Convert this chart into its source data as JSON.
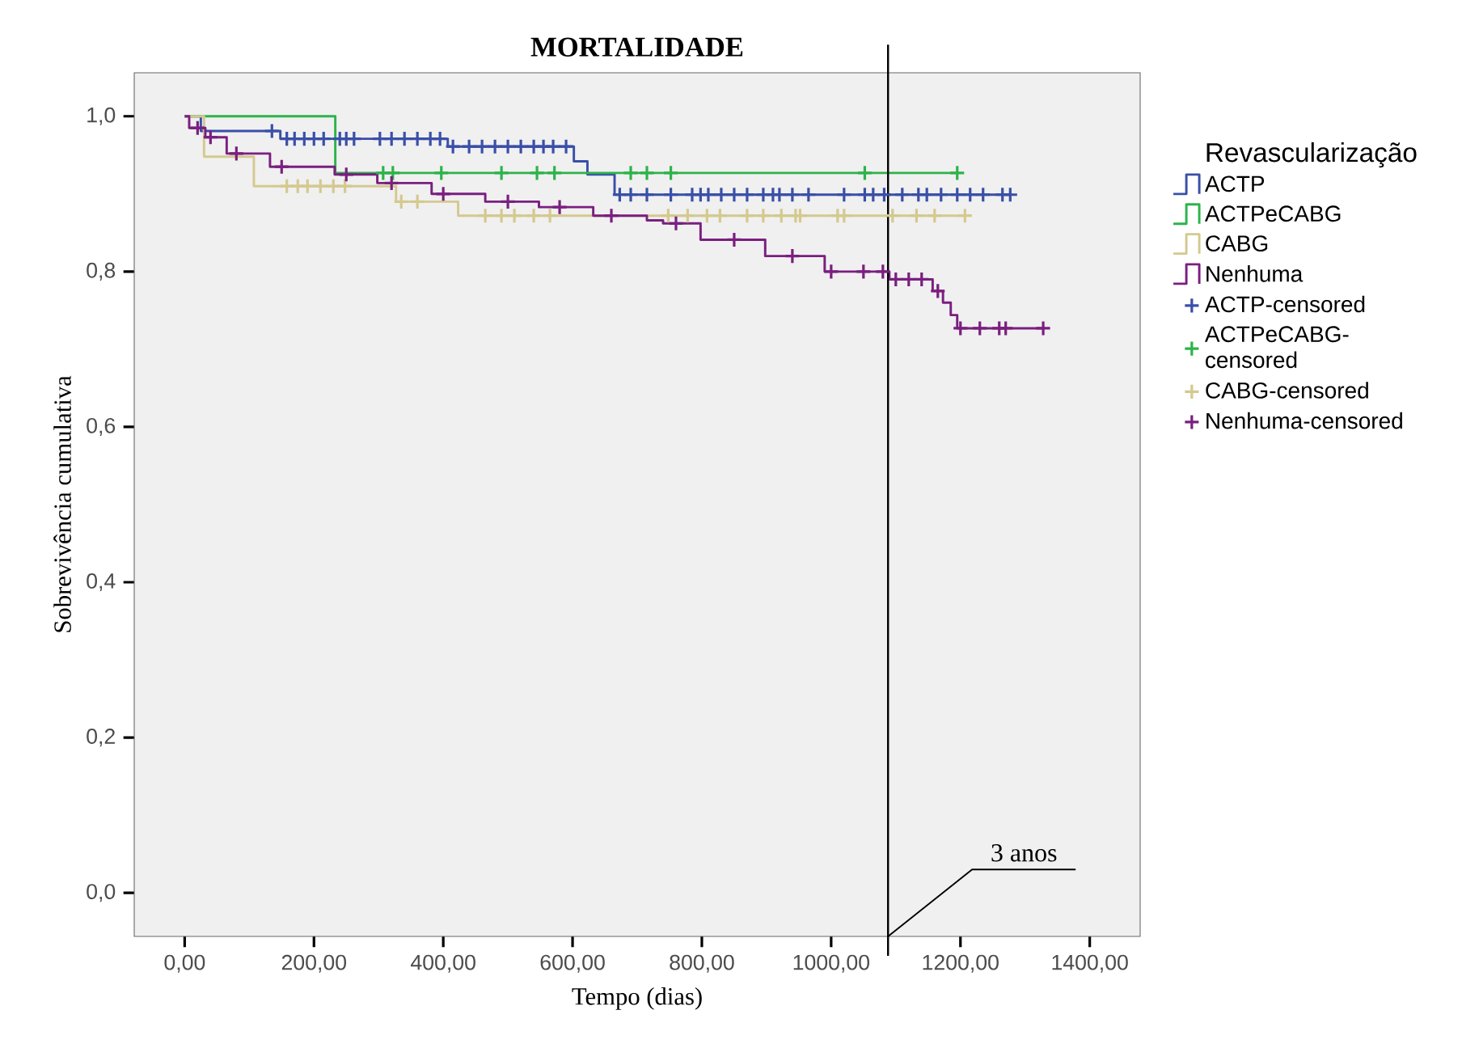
{
  "chart_data": {
    "type": "step",
    "title": "MORTALIDADE",
    "xlabel": "Tempo (dias)",
    "ylabel": "Sobrevivência cumulativa",
    "legend_title": "Revascularização",
    "legend": "right",
    "xlim": [
      -78,
      1478
    ],
    "ylim": [
      -0.056,
      1.056
    ],
    "xticks": [
      {
        "value": 0,
        "label": "0,00"
      },
      {
        "value": 200,
        "label": "200,00"
      },
      {
        "value": 400,
        "label": "400,00"
      },
      {
        "value": 600,
        "label": "600,00"
      },
      {
        "value": 800,
        "label": "800,00"
      },
      {
        "value": 1000,
        "label": "1000,00"
      },
      {
        "value": 1200,
        "label": "1200,00"
      },
      {
        "value": 1400,
        "label": "1400,00"
      }
    ],
    "yticks": [
      {
        "value": 0,
        "label": "0,0"
      },
      {
        "value": 0.2,
        "label": "0,2"
      },
      {
        "value": 0.4,
        "label": "0,4"
      },
      {
        "value": 0.6,
        "label": "0,6"
      },
      {
        "value": 0.8,
        "label": "0,8"
      },
      {
        "value": 1,
        "label": "1,0"
      }
    ],
    "ref_lines": [
      {
        "axis": "x",
        "value": 1088,
        "label": "3 anos",
        "color": "#000000"
      }
    ],
    "series": [
      {
        "name": "ACTP",
        "type": "step",
        "color": "#3a4fa8",
        "x": [
          0,
          25,
          148,
          407,
          602,
          623,
          665,
          1277
        ],
        "values": [
          1.0,
          0.981,
          0.971,
          0.961,
          0.942,
          0.925,
          0.899,
          0.899
        ]
      },
      {
        "name": "ACTPeCABG",
        "type": "step",
        "color": "#2db34a",
        "x": [
          0,
          233,
          1195
        ],
        "values": [
          1.0,
          0.927,
          0.927
        ]
      },
      {
        "name": "CABG",
        "type": "step",
        "color": "#d4c98f",
        "x": [
          0,
          30,
          107,
          327,
          423,
          1207
        ],
        "values": [
          1.0,
          0.948,
          0.91,
          0.89,
          0.872,
          0.872
        ]
      },
      {
        "name": "Nenhuma",
        "type": "step",
        "color": "#7a1f7f",
        "x": [
          0,
          7,
          32,
          65,
          132,
          232,
          298,
          382,
          465,
          548,
          632,
          715,
          740,
          798,
          898,
          990,
          1090,
          1157,
          1173,
          1185,
          1195,
          1328
        ],
        "values": [
          1.0,
          0.985,
          0.973,
          0.952,
          0.935,
          0.925,
          0.914,
          0.9,
          0.89,
          0.883,
          0.872,
          0.866,
          0.862,
          0.841,
          0.82,
          0.8,
          0.79,
          0.775,
          0.76,
          0.744,
          0.727,
          0.727
        ]
      },
      {
        "name": "ACTP-censored",
        "type": "scatter",
        "marker": "cross",
        "color": "#3a4fa8",
        "x": [
          135,
          158,
          170,
          185,
          200,
          215,
          240,
          250,
          262,
          302,
          320,
          340,
          360,
          380,
          395,
          415,
          440,
          460,
          480,
          500,
          520,
          540,
          555,
          570,
          590,
          673,
          690,
          715,
          752,
          785,
          798,
          810,
          830,
          850,
          870,
          895,
          910,
          920,
          940,
          965,
          1020,
          1052,
          1065,
          1082,
          1110,
          1135,
          1148,
          1170,
          1195,
          1215,
          1235,
          1265,
          1277
        ],
        "values": [
          0.981,
          0.971,
          0.971,
          0.971,
          0.971,
          0.971,
          0.971,
          0.971,
          0.971,
          0.971,
          0.971,
          0.971,
          0.971,
          0.971,
          0.971,
          0.961,
          0.961,
          0.961,
          0.961,
          0.961,
          0.961,
          0.961,
          0.961,
          0.961,
          0.961,
          0.899,
          0.899,
          0.899,
          0.899,
          0.899,
          0.899,
          0.899,
          0.899,
          0.899,
          0.899,
          0.899,
          0.899,
          0.899,
          0.899,
          0.899,
          0.899,
          0.899,
          0.899,
          0.899,
          0.899,
          0.899,
          0.899,
          0.899,
          0.899,
          0.899,
          0.899,
          0.899,
          0.899
        ]
      },
      {
        "name": "ACTPeCABG-censored",
        "type": "scatter",
        "marker": "cross",
        "color": "#2db34a",
        "x": [
          307,
          322,
          397,
          490,
          545,
          572,
          690,
          715,
          752,
          1052,
          1195
        ],
        "values": [
          0.927,
          0.927,
          0.927,
          0.927,
          0.927,
          0.927,
          0.927,
          0.927,
          0.927,
          0.927,
          0.927
        ]
      },
      {
        "name": "CABG-censored",
        "type": "scatter",
        "marker": "cross",
        "color": "#d4c98f",
        "x": [
          158,
          175,
          190,
          210,
          230,
          248,
          335,
          360,
          465,
          490,
          510,
          540,
          565,
          748,
          778,
          808,
          828,
          870,
          895,
          923,
          945,
          952,
          1010,
          1020,
          1095,
          1132,
          1160,
          1207
        ],
        "values": [
          0.91,
          0.91,
          0.91,
          0.91,
          0.91,
          0.91,
          0.89,
          0.89,
          0.872,
          0.872,
          0.872,
          0.872,
          0.872,
          0.872,
          0.872,
          0.872,
          0.872,
          0.872,
          0.872,
          0.872,
          0.872,
          0.872,
          0.872,
          0.872,
          0.872,
          0.872,
          0.872,
          0.872
        ]
      },
      {
        "name": "Nenhuma-censored",
        "type": "scatter",
        "marker": "cross",
        "color": "#7a1f7f",
        "x": [
          20,
          40,
          80,
          150,
          250,
          320,
          400,
          500,
          580,
          660,
          760,
          850,
          940,
          1000,
          1050,
          1080,
          1100,
          1120,
          1140,
          1165,
          1200,
          1230,
          1260,
          1270,
          1328
        ],
        "values": [
          0.985,
          0.973,
          0.952,
          0.935,
          0.925,
          0.914,
          0.9,
          0.89,
          0.883,
          0.872,
          0.862,
          0.841,
          0.82,
          0.8,
          0.8,
          0.8,
          0.79,
          0.79,
          0.79,
          0.775,
          0.727,
          0.727,
          0.727,
          0.727,
          0.727
        ]
      }
    ]
  }
}
